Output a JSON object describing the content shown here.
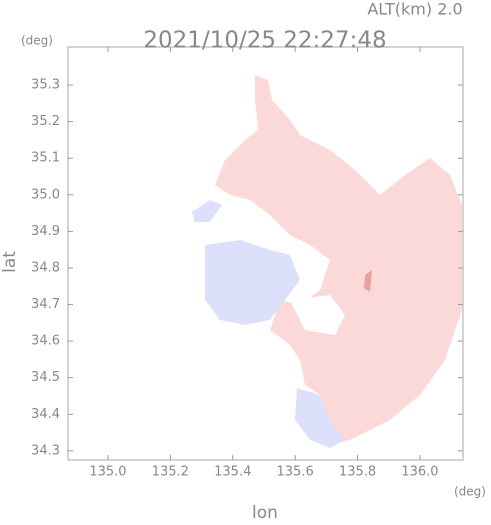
{
  "chart_data": {
    "type": "map",
    "title": "2021/10/25 22:27:48",
    "subtitle": "ALT(km) 2.0",
    "x_label": "lon",
    "y_label": "lat",
    "x_unit": "(deg)",
    "y_unit": "(deg)",
    "xlim": [
      134.872,
      136.138
    ],
    "ylim": [
      34.275,
      35.404
    ],
    "xticks": [
      {
        "value": 135,
        "label": "135.0"
      },
      135.2,
      135.4,
      135.6,
      135.8,
      {
        "value": 136,
        "label": "136.0"
      }
    ],
    "yticks": [
      34.3,
      34.4,
      34.5,
      34.6,
      34.7,
      34.8,
      34.9,
      {
        "value": 35,
        "label": "35.0"
      },
      35.1,
      35.2,
      35.3
    ]
  }
}
